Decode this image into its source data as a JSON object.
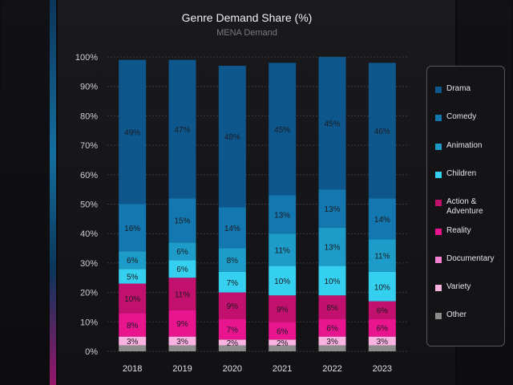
{
  "chart_data": {
    "type": "bar",
    "stacked": true,
    "title": "Genre Demand Share (%)",
    "subtitle": "MENA Demand",
    "categories": [
      "2018",
      "2019",
      "2020",
      "2021",
      "2022",
      "2023"
    ],
    "ylim": [
      0,
      100
    ],
    "yticks": [
      "0%",
      "10%",
      "20%",
      "30%",
      "40%",
      "50%",
      "60%",
      "70%",
      "80%",
      "90%",
      "100%"
    ],
    "series": [
      {
        "name": "Other",
        "color": "#8c8c8c",
        "values": [
          2,
          2,
          2,
          2,
          2,
          2
        ],
        "labels": [
          "",
          "",
          "",
          "",
          "",
          ""
        ]
      },
      {
        "name": "Variety",
        "color": "#f9b3e0",
        "values": [
          3,
          3,
          2,
          2,
          3,
          3
        ],
        "labels": [
          "3%",
          "3%",
          "2%",
          "2%",
          "3%",
          "3%"
        ]
      },
      {
        "name": "Documentary",
        "color": "#f27fcf",
        "values": [
          0,
          0,
          0,
          0,
          0,
          0
        ],
        "labels": [
          "",
          "",
          "",
          "",
          "",
          ""
        ]
      },
      {
        "name": "Reality",
        "color": "#e8158f",
        "values": [
          8,
          9,
          7,
          6,
          6,
          6
        ],
        "labels": [
          "8%",
          "9%",
          "7%",
          "6%",
          "6%",
          "6%"
        ]
      },
      {
        "name": "Action &\nAdventure",
        "color": "#c2106e",
        "values": [
          10,
          11,
          9,
          9,
          8,
          6
        ],
        "labels": [
          "10%",
          "11%",
          "9%",
          "9%",
          "8%",
          "6%"
        ]
      },
      {
        "name": "Children",
        "color": "#35d0f0",
        "values": [
          5,
          6,
          7,
          10,
          10,
          10
        ],
        "labels": [
          "5%",
          "6%",
          "7%",
          "10%",
          "10%",
          "10%"
        ]
      },
      {
        "name": "Animation",
        "color": "#1d9cc9",
        "values": [
          6,
          6,
          8,
          11,
          13,
          11
        ],
        "labels": [
          "6%",
          "6%",
          "8%",
          "11%",
          "13%",
          "11%"
        ]
      },
      {
        "name": "Comedy",
        "color": "#1478b0",
        "values": [
          16,
          15,
          14,
          13,
          13,
          14
        ],
        "labels": [
          "16%",
          "15%",
          "14%",
          "13%",
          "13%",
          "14%"
        ]
      },
      {
        "name": "Drama",
        "color": "#0e578d",
        "values": [
          49,
          47,
          48,
          45,
          45,
          46
        ],
        "labels": [
          "49%",
          "47%",
          "48%",
          "45%",
          "45%",
          "46%"
        ]
      }
    ],
    "legend": [
      "Drama",
      "Comedy",
      "Animation",
      "Children",
      "Action &\nAdventure",
      "Reality",
      "Documentary",
      "Variety",
      "Other"
    ],
    "legend_position": "right"
  }
}
